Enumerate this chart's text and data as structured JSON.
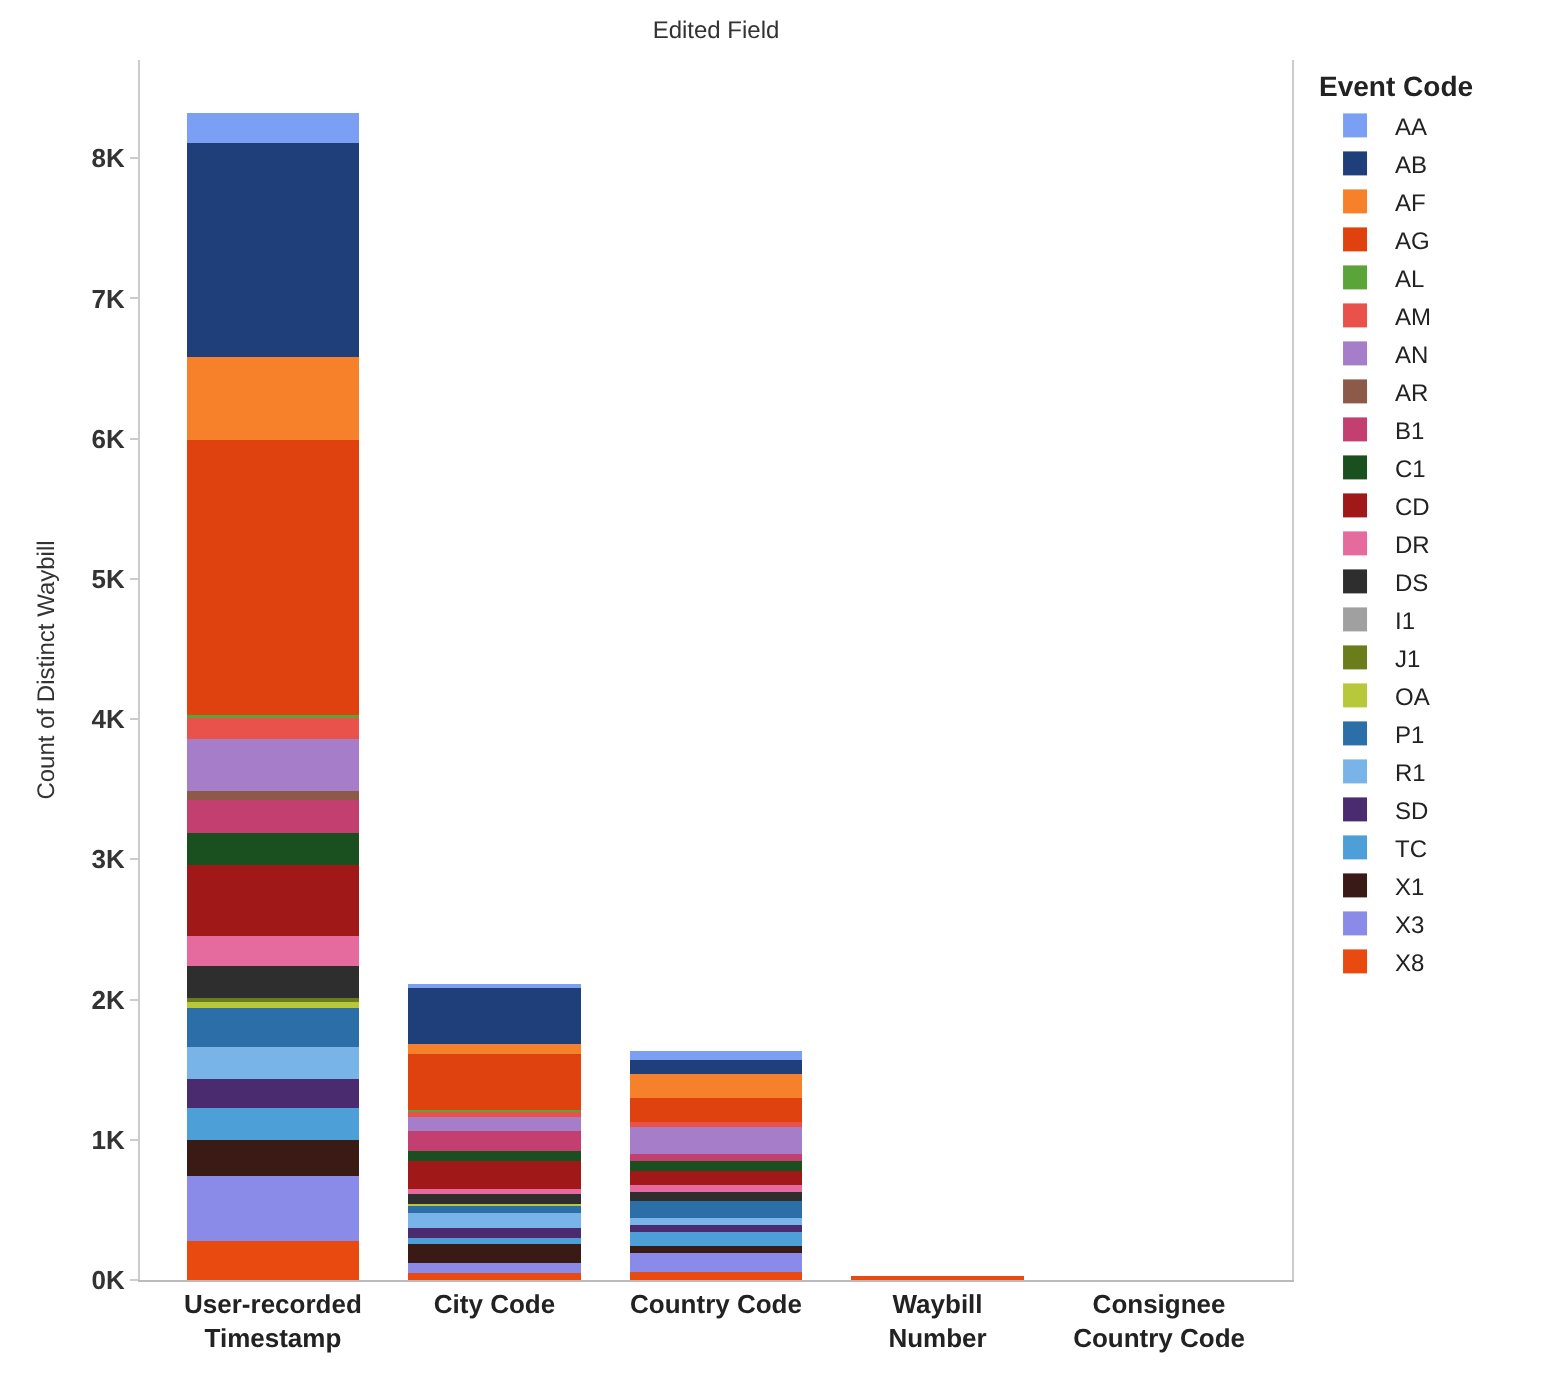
{
  "chart_data": {
    "type": "bar",
    "stacked": true,
    "title": "Edited Field",
    "ylabel": "Count of Distinct Waybill",
    "legend_title": "Event Code",
    "legend": "right",
    "categories": [
      "User-recorded Timestamp",
      "City Code",
      "Country Code",
      "Waybill Number",
      "Consignee Country Code"
    ],
    "ylim": [
      0,
      8700
    ],
    "yticks": [
      {
        "value": 0,
        "label": "0K"
      },
      {
        "value": 1000,
        "label": "1K"
      },
      {
        "value": 2000,
        "label": "2K"
      },
      {
        "value": 3000,
        "label": "3K"
      },
      {
        "value": 4000,
        "label": "4K"
      },
      {
        "value": 5000,
        "label": "5K"
      },
      {
        "value": 6000,
        "label": "6K"
      },
      {
        "value": 7000,
        "label": "7K"
      },
      {
        "value": 8000,
        "label": "8K"
      }
    ],
    "grid": false,
    "series": [
      {
        "name": "X8",
        "color": "#e84a10",
        "values": [
          280,
          50,
          60,
          20,
          null
        ]
      },
      {
        "name": "X3",
        "color": "#8a8ae8",
        "values": [
          460,
          70,
          130,
          null,
          null
        ]
      },
      {
        "name": "X1",
        "color": "#3a1a14",
        "values": [
          260,
          140,
          50,
          null,
          null
        ]
      },
      {
        "name": "TC",
        "color": "#4d9fd8",
        "values": [
          230,
          40,
          100,
          null,
          null
        ]
      },
      {
        "name": "SD",
        "color": "#4a2b70",
        "values": [
          200,
          70,
          50,
          null,
          null
        ]
      },
      {
        "name": "R1",
        "color": "#79b4e8",
        "values": [
          230,
          110,
          50,
          null,
          null
        ]
      },
      {
        "name": "P1",
        "color": "#2b6ea8",
        "values": [
          280,
          50,
          120,
          null,
          null
        ]
      },
      {
        "name": "OA",
        "color": "#b7c83a",
        "values": [
          50,
          10,
          null,
          null,
          null
        ]
      },
      {
        "name": "J1",
        "color": "#6b7d1a",
        "values": [
          20,
          null,
          null,
          null,
          null
        ]
      },
      {
        "name": "I1",
        "color": "#a0a0a0",
        "values": [
          null,
          null,
          null,
          null,
          null
        ]
      },
      {
        "name": "DS",
        "color": "#2e2e2e",
        "values": [
          230,
          70,
          70,
          null,
          null
        ]
      },
      {
        "name": "DR",
        "color": "#e56b9f",
        "values": [
          210,
          40,
          50,
          null,
          null
        ]
      },
      {
        "name": "CD",
        "color": "#a01818",
        "values": [
          510,
          200,
          100,
          null,
          null
        ]
      },
      {
        "name": "C1",
        "color": "#1a5020",
        "values": [
          230,
          70,
          70,
          null,
          null
        ]
      },
      {
        "name": "B1",
        "color": "#c23f70",
        "values": [
          230,
          140,
          50,
          null,
          null
        ]
      },
      {
        "name": "AR",
        "color": "#8d5a4a",
        "values": [
          70,
          null,
          null,
          null,
          null
        ]
      },
      {
        "name": "AN",
        "color": "#a57dc8",
        "values": [
          370,
          100,
          190,
          null,
          null
        ]
      },
      {
        "name": "AM",
        "color": "#e8524a",
        "values": [
          150,
          40,
          40,
          null,
          null
        ]
      },
      {
        "name": "AL",
        "color": "#5aa43a",
        "values": [
          20,
          10,
          null,
          null,
          null
        ]
      },
      {
        "name": "AG",
        "color": "#e0420f",
        "values": [
          1960,
          400,
          170,
          null,
          null
        ]
      },
      {
        "name": "AF",
        "color": "#f7802a",
        "values": [
          590,
          70,
          170,
          null,
          null
        ]
      },
      {
        "name": "AB",
        "color": "#1f3f7a",
        "values": [
          1530,
          400,
          100,
          null,
          null
        ]
      },
      {
        "name": "AA",
        "color": "#7b9ff2",
        "values": [
          210,
          30,
          60,
          null,
          null
        ]
      }
    ]
  }
}
